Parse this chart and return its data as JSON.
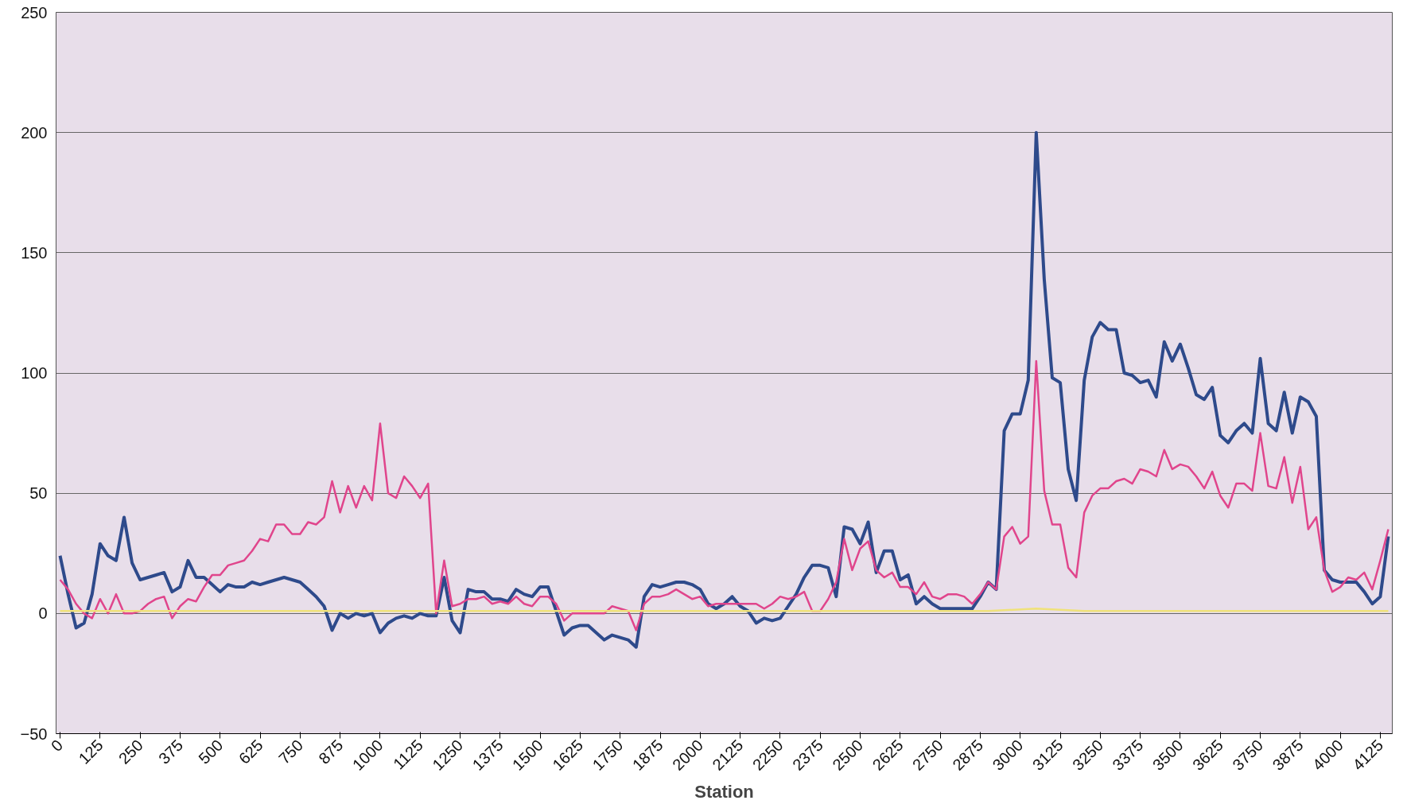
{
  "chart_data": {
    "type": "line",
    "xlabel": "Station",
    "x": [
      0,
      25,
      50,
      75,
      100,
      125,
      150,
      175,
      200,
      225,
      250,
      275,
      300,
      325,
      350,
      375,
      400,
      425,
      450,
      475,
      500,
      525,
      550,
      575,
      600,
      625,
      650,
      675,
      700,
      725,
      750,
      775,
      800,
      825,
      850,
      875,
      900,
      925,
      950,
      975,
      1000,
      1025,
      1050,
      1075,
      1100,
      1125,
      1150,
      1175,
      1200,
      1225,
      1250,
      1275,
      1300,
      1325,
      1350,
      1375,
      1400,
      1425,
      1450,
      1475,
      1500,
      1525,
      1550,
      1575,
      1600,
      1625,
      1650,
      1675,
      1700,
      1725,
      1750,
      1775,
      1800,
      1825,
      1850,
      1875,
      1900,
      1925,
      1950,
      1975,
      2000,
      2025,
      2050,
      2075,
      2100,
      2125,
      2150,
      2175,
      2200,
      2225,
      2250,
      2275,
      2300,
      2325,
      2350,
      2375,
      2400,
      2425,
      2450,
      2475,
      2500,
      2525,
      2550,
      2575,
      2600,
      2625,
      2650,
      2675,
      2700,
      2725,
      2750,
      2775,
      2800,
      2825,
      2850,
      2875,
      2900,
      2925,
      2950,
      2975,
      3000,
      3025,
      3050,
      3075,
      3100,
      3125,
      3150,
      3175,
      3200,
      3225,
      3250,
      3275,
      3300,
      3325,
      3350,
      3375,
      3400,
      3425,
      3450,
      3475,
      3500,
      3525,
      3550,
      3575,
      3600,
      3625,
      3650,
      3675,
      3700,
      3725,
      3750,
      3775,
      3800,
      3825,
      3850,
      3875,
      3900,
      3925,
      3950,
      3975,
      4000,
      4025,
      4050,
      4075,
      4100,
      4125,
      4150
    ],
    "series": [
      {
        "color": "#2e4a8b",
        "values": [
          24,
          8,
          -6,
          -4,
          8,
          29,
          24,
          22,
          40,
          21,
          14,
          15,
          16,
          17,
          9,
          11,
          22,
          15,
          15,
          12,
          9,
          12,
          11,
          11,
          13,
          12,
          13,
          14,
          15,
          14,
          13,
          10,
          7,
          3,
          -7,
          0,
          -2,
          0,
          -1,
          0,
          -8,
          -4,
          -2,
          -1,
          -2,
          0,
          -1,
          -1,
          15,
          -3,
          -8,
          10,
          9,
          9,
          6,
          6,
          5,
          10,
          8,
          7,
          11,
          11,
          1,
          -9,
          -6,
          -5,
          -5,
          -8,
          -11,
          -9,
          -10,
          -11,
          -14,
          7,
          12,
          11,
          12,
          13,
          13,
          12,
          10,
          4,
          2,
          4,
          7,
          3,
          1,
          -4,
          -2,
          -3,
          -2,
          3,
          8,
          15,
          20,
          20,
          19,
          7,
          36,
          35,
          29,
          38,
          17,
          26,
          26,
          14,
          16,
          4,
          7,
          4,
          2,
          2,
          2,
          2,
          2,
          7,
          13,
          10,
          76,
          83,
          83,
          97,
          200,
          139,
          98,
          96,
          60,
          47,
          97,
          115,
          121,
          118,
          118,
          100,
          99,
          96,
          97,
          90,
          113,
          105,
          112,
          102,
          91,
          89,
          94,
          74,
          71,
          76,
          79,
          75,
          106,
          79,
          76,
          92,
          75,
          90,
          88,
          82,
          18,
          14,
          13,
          13,
          13,
          9,
          4,
          7,
          32
        ]
      },
      {
        "color": "#e0458c",
        "values": [
          14,
          10,
          4,
          0,
          -2,
          6,
          0,
          8,
          0,
          0,
          1,
          4,
          6,
          7,
          -2,
          3,
          6,
          5,
          11,
          16,
          16,
          20,
          21,
          22,
          26,
          31,
          30,
          37,
          37,
          33,
          33,
          38,
          37,
          40,
          55,
          42,
          53,
          44,
          53,
          47,
          79,
          50,
          48,
          57,
          53,
          48,
          54,
          0,
          22,
          3,
          4,
          6,
          6,
          7,
          4,
          5,
          4,
          7,
          4,
          3,
          7,
          7,
          4,
          -3,
          0,
          0,
          0,
          0,
          0,
          3,
          2,
          1,
          -7,
          4,
          7,
          7,
          8,
          10,
          8,
          6,
          7,
          3,
          4,
          4,
          4,
          4,
          4,
          4,
          2,
          4,
          7,
          6,
          7,
          9,
          1,
          1,
          6,
          13,
          31,
          18,
          27,
          30,
          18,
          15,
          17,
          11,
          11,
          8,
          13,
          7,
          6,
          8,
          8,
          7,
          4,
          8,
          13,
          10,
          32,
          36,
          29,
          32,
          105,
          51,
          37,
          37,
          19,
          15,
          42,
          49,
          52,
          52,
          55,
          56,
          54,
          60,
          59,
          57,
          68,
          60,
          62,
          61,
          57,
          52,
          59,
          49,
          44,
          54,
          54,
          51,
          75,
          53,
          52,
          65,
          46,
          61,
          35,
          40,
          18,
          9,
          11,
          15,
          14,
          17,
          10,
          22,
          35
        ]
      },
      {
        "color": "#f0e27a",
        "x": [
          0,
          2900,
          3050,
          3200,
          4150
        ],
        "values": [
          1,
          1,
          2,
          1,
          1
        ]
      }
    ],
    "xlim": [
      -12.5,
      4162.5
    ],
    "xticks": [
      0,
      125,
      250,
      375,
      500,
      625,
      750,
      875,
      1000,
      1125,
      1250,
      1375,
      1500,
      1625,
      1750,
      1875,
      2000,
      2125,
      2250,
      2375,
      2500,
      2625,
      2750,
      2875,
      3000,
      3125,
      3250,
      3375,
      3500,
      3625,
      3750,
      3875,
      4000,
      4125
    ],
    "ylim": [
      -50,
      250
    ],
    "yticks": [
      -50,
      0,
      50,
      100,
      150,
      200,
      250
    ],
    "grid": "y",
    "marker": "none",
    "line_style": "solid"
  }
}
